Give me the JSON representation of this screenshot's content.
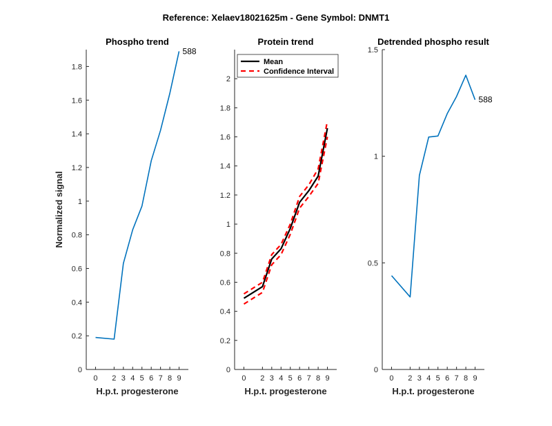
{
  "suptitle": "Reference:  Xelaev18021625m - Gene Symbol:  DNMT1",
  "colors": {
    "phospho_line": "#0072BD",
    "mean_line": "#000000",
    "ci_line": "#FF0000",
    "axis": "#262626"
  },
  "chart_data": [
    {
      "type": "line",
      "title": "Phospho trend",
      "xlabel": "H.p.t. progesterone",
      "ylabel": "Normalized signal",
      "x": [
        0,
        2,
        3,
        4,
        5,
        6,
        7,
        8,
        9
      ],
      "xticks": [
        "0",
        "2",
        "3",
        "4",
        "5",
        "6",
        "7",
        "8",
        "9"
      ],
      "ylim": [
        0,
        1.9
      ],
      "yticks": [
        "0",
        "0.2",
        "0.4",
        "0.6",
        "0.8",
        "1",
        "1.2",
        "1.4",
        "1.6",
        "1.8"
      ],
      "series": [
        {
          "name": "588",
          "values": [
            0.19,
            0.18,
            0.63,
            0.83,
            0.97,
            1.24,
            1.42,
            1.64,
            1.89
          ]
        }
      ],
      "end_label": "588"
    },
    {
      "type": "line",
      "title": "Protein trend",
      "xlabel": "H.p.t. progesterone",
      "ylabel": "",
      "x": [
        0,
        2,
        3,
        4,
        5,
        6,
        7,
        8,
        9
      ],
      "xticks": [
        "0",
        "2",
        "3",
        "4",
        "5",
        "6",
        "7",
        "8",
        "9"
      ],
      "ylim": [
        0,
        2.2
      ],
      "yticks": [
        "0",
        "0.2",
        "0.4",
        "0.6",
        "0.8",
        "1",
        "1.2",
        "1.4",
        "1.6",
        "1.8",
        "2"
      ],
      "series": [
        {
          "name": "Mean",
          "values": [
            0.49,
            0.57,
            0.76,
            0.83,
            0.97,
            1.15,
            1.23,
            1.33,
            1.66
          ]
        },
        {
          "name": "Confidence Interval",
          "values": [
            0.52,
            0.6,
            0.79,
            0.86,
            1.0,
            1.19,
            1.27,
            1.38,
            1.71
          ]
        },
        {
          "name": "Confidence Interval",
          "values": [
            0.45,
            0.53,
            0.72,
            0.79,
            0.93,
            1.11,
            1.19,
            1.28,
            1.6
          ]
        }
      ],
      "legend": [
        "Mean",
        "Confidence Interval"
      ],
      "legend_position": "top-left"
    },
    {
      "type": "line",
      "title": "Detrended phospho result",
      "xlabel": "H.p.t. progesterone",
      "ylabel": "",
      "x": [
        0,
        2,
        3,
        4,
        5,
        6,
        7,
        8,
        9
      ],
      "xticks": [
        "0",
        "2",
        "3",
        "4",
        "5",
        "6",
        "7",
        "8",
        "9"
      ],
      "ylim": [
        0,
        1.5
      ],
      "yticks": [
        "0",
        "0.5",
        "1",
        "1.5"
      ],
      "series": [
        {
          "name": "588",
          "values": [
            0.44,
            0.34,
            0.91,
            1.09,
            1.095,
            1.2,
            1.28,
            1.38,
            1.265
          ]
        }
      ],
      "end_label": "588"
    }
  ]
}
